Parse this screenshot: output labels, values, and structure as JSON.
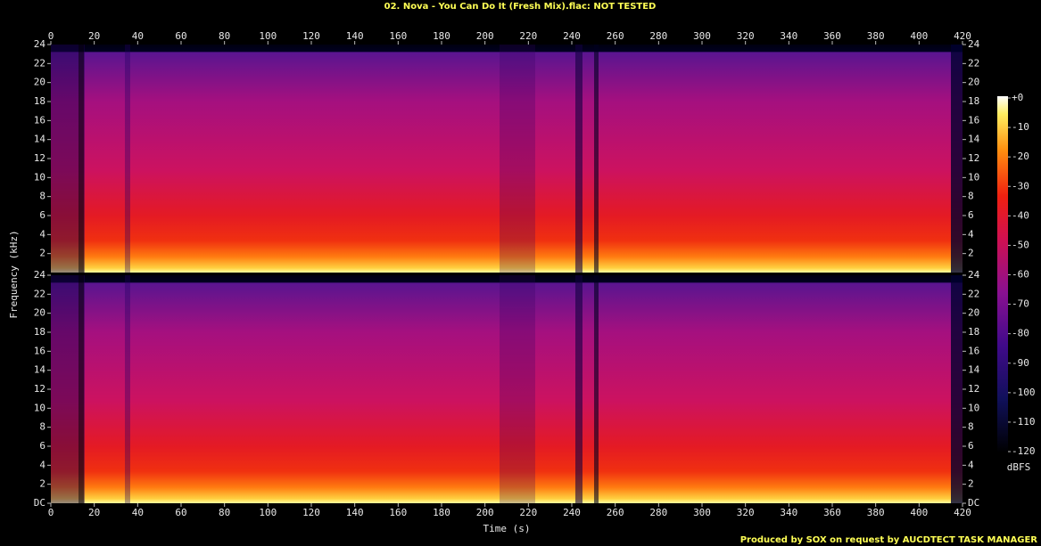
{
  "chart_data": {
    "type": "spectrogram",
    "title": "02. Nova - You Can Do It (Fresh Mix).flac: NOT TESTED",
    "x_label": "Time (s)",
    "y_label": "Frequency (kHz)",
    "xlim": [
      0,
      420
    ],
    "xticks": [
      0,
      20,
      40,
      60,
      80,
      100,
      120,
      140,
      160,
      180,
      200,
      220,
      240,
      260,
      280,
      300,
      320,
      340,
      360,
      380,
      400,
      420
    ],
    "ylim": [
      0,
      24
    ],
    "panels": [
      {
        "yticks": [
          2,
          4,
          6,
          8,
          10,
          12,
          14,
          16,
          18,
          20,
          22,
          24
        ]
      },
      {
        "yticks": [
          {
            "value": 0,
            "label": "DC"
          },
          2,
          4,
          6,
          8,
          10,
          12,
          14,
          16,
          18,
          20,
          22,
          24
        ]
      }
    ],
    "colorbar": {
      "label": "dBFS",
      "lim": [
        -120,
        0
      ],
      "ticks": [
        {
          "value": 0,
          "label": "+0"
        },
        -10,
        -20,
        -30,
        -40,
        -50,
        -60,
        -70,
        -80,
        -90,
        -100,
        -110,
        -120
      ]
    },
    "footer": "Produced by SOX on request by AUCDTECT TASK MANAGER"
  }
}
